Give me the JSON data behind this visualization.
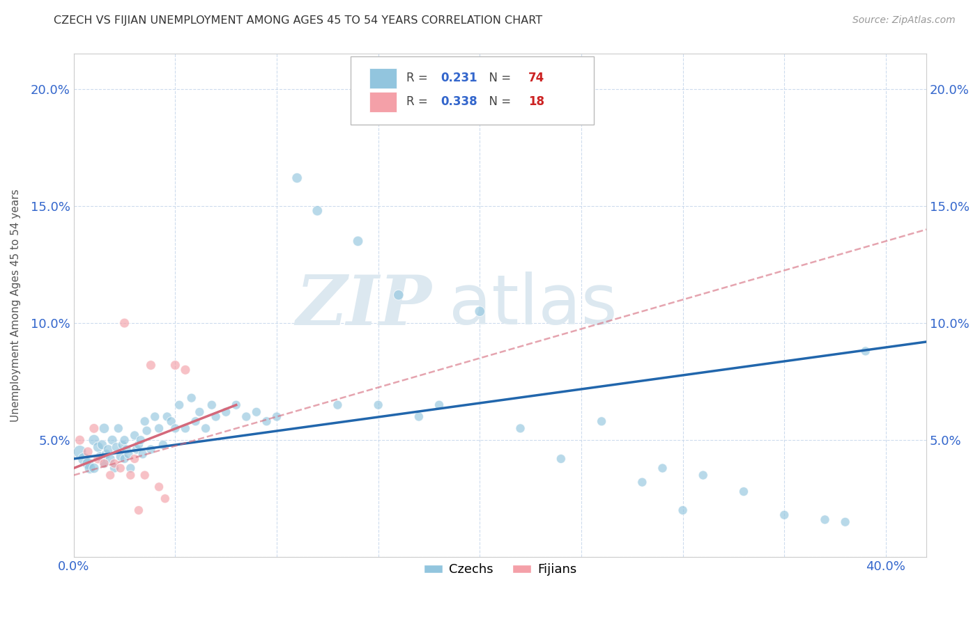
{
  "title": "CZECH VS FIJIAN UNEMPLOYMENT AMONG AGES 45 TO 54 YEARS CORRELATION CHART",
  "source": "Source: ZipAtlas.com",
  "ylabel": "Unemployment Among Ages 45 to 54 years",
  "xlim": [
    0.0,
    0.42
  ],
  "ylim": [
    0.0,
    0.215
  ],
  "xtick_vals": [
    0.0,
    0.05,
    0.1,
    0.15,
    0.2,
    0.25,
    0.3,
    0.35,
    0.4
  ],
  "ytick_vals": [
    0.0,
    0.05,
    0.1,
    0.15,
    0.2
  ],
  "legend_label1": "Czechs",
  "legend_label2": "Fijians",
  "R1": 0.231,
  "N1": 74,
  "R2": 0.338,
  "N2": 18,
  "color_czech": "#92c5de",
  "color_fijian": "#f4a0a8",
  "color_czech_line": "#2166ac",
  "color_fijian_line": "#d4687a",
  "background_color": "#ffffff",
  "grid_color": "#c8d8ec",
  "watermark_zip": "ZIP",
  "watermark_atlas": "atlas",
  "czech_x": [
    0.003,
    0.005,
    0.007,
    0.008,
    0.01,
    0.01,
    0.012,
    0.013,
    0.014,
    0.015,
    0.015,
    0.016,
    0.017,
    0.018,
    0.019,
    0.02,
    0.021,
    0.022,
    0.023,
    0.024,
    0.025,
    0.025,
    0.026,
    0.027,
    0.028,
    0.03,
    0.031,
    0.032,
    0.033,
    0.034,
    0.035,
    0.036,
    0.038,
    0.04,
    0.042,
    0.044,
    0.046,
    0.048,
    0.05,
    0.052,
    0.055,
    0.058,
    0.06,
    0.062,
    0.065,
    0.068,
    0.07,
    0.075,
    0.08,
    0.085,
    0.09,
    0.095,
    0.1,
    0.11,
    0.12,
    0.13,
    0.14,
    0.15,
    0.16,
    0.17,
    0.18,
    0.2,
    0.22,
    0.24,
    0.26,
    0.28,
    0.29,
    0.3,
    0.31,
    0.33,
    0.35,
    0.37,
    0.38,
    0.39
  ],
  "czech_y": [
    0.045,
    0.042,
    0.04,
    0.038,
    0.05,
    0.038,
    0.047,
    0.043,
    0.048,
    0.055,
    0.04,
    0.044,
    0.046,
    0.042,
    0.05,
    0.038,
    0.047,
    0.055,
    0.043,
    0.048,
    0.05,
    0.042,
    0.046,
    0.044,
    0.038,
    0.052,
    0.046,
    0.048,
    0.05,
    0.044,
    0.058,
    0.054,
    0.046,
    0.06,
    0.055,
    0.048,
    0.06,
    0.058,
    0.055,
    0.065,
    0.055,
    0.068,
    0.058,
    0.062,
    0.055,
    0.065,
    0.06,
    0.062,
    0.065,
    0.06,
    0.062,
    0.058,
    0.06,
    0.162,
    0.148,
    0.065,
    0.135,
    0.065,
    0.112,
    0.06,
    0.065,
    0.105,
    0.055,
    0.042,
    0.058,
    0.032,
    0.038,
    0.02,
    0.035,
    0.028,
    0.018,
    0.016,
    0.015,
    0.088
  ],
  "czech_sizes": [
    180,
    160,
    140,
    130,
    130,
    110,
    110,
    100,
    100,
    110,
    100,
    100,
    100,
    100,
    100,
    90,
    90,
    90,
    90,
    90,
    90,
    90,
    90,
    90,
    90,
    90,
    90,
    90,
    90,
    90,
    90,
    90,
    90,
    90,
    90,
    90,
    90,
    90,
    90,
    90,
    90,
    90,
    90,
    90,
    90,
    90,
    90,
    90,
    90,
    90,
    90,
    90,
    90,
    110,
    110,
    90,
    110,
    90,
    110,
    90,
    90,
    110,
    90,
    90,
    90,
    90,
    90,
    90,
    90,
    90,
    90,
    90,
    90,
    90
  ],
  "fijian_x": [
    0.003,
    0.007,
    0.01,
    0.012,
    0.015,
    0.018,
    0.02,
    0.023,
    0.025,
    0.028,
    0.03,
    0.032,
    0.035,
    0.038,
    0.042,
    0.045,
    0.05,
    0.055
  ],
  "fijian_y": [
    0.05,
    0.045,
    0.055,
    0.042,
    0.04,
    0.035,
    0.04,
    0.038,
    0.1,
    0.035,
    0.042,
    0.02,
    0.035,
    0.082,
    0.03,
    0.025,
    0.082,
    0.08
  ],
  "fijian_sizes": [
    100,
    100,
    100,
    100,
    90,
    90,
    90,
    90,
    100,
    90,
    90,
    90,
    90,
    100,
    90,
    90,
    100,
    100
  ],
  "czech_line_x": [
    0.0,
    0.42
  ],
  "czech_line_y": [
    0.042,
    0.092
  ],
  "fijian_line_x": [
    0.0,
    0.12
  ],
  "fijian_line_y": [
    0.038,
    0.09
  ]
}
